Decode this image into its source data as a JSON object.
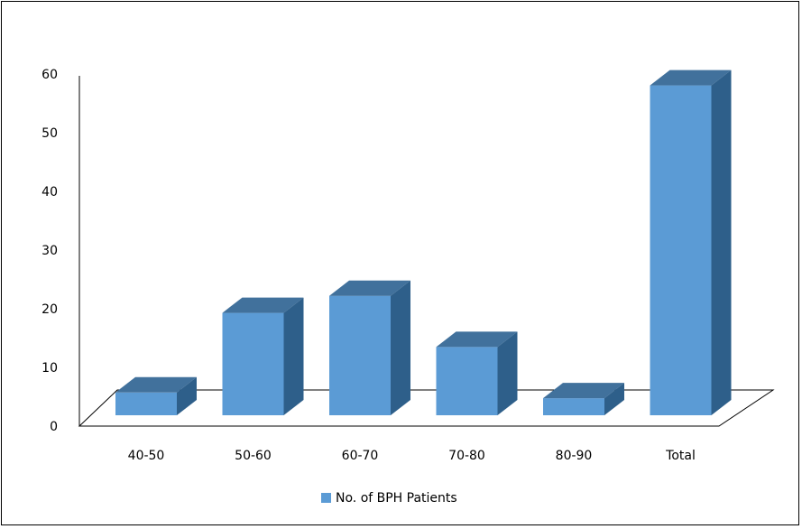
{
  "chart_data": {
    "type": "bar",
    "style": "3d",
    "categories": [
      "40-50",
      "50-60",
      "60-70",
      "70-80",
      "80-90",
      "Total"
    ],
    "series": [
      {
        "name": "No. of BPH  Patients",
        "values": [
          4,
          18,
          21,
          12,
          3,
          58
        ]
      }
    ],
    "ylim": [
      0,
      60
    ],
    "yticks": [
      0,
      10,
      20,
      30,
      40,
      50,
      60
    ],
    "grid": false,
    "legend_position": "bottom",
    "colors": {
      "front": "#5b9bd5",
      "top": "#41719c",
      "side": "#2e5f8a",
      "floor": "#000000"
    }
  }
}
